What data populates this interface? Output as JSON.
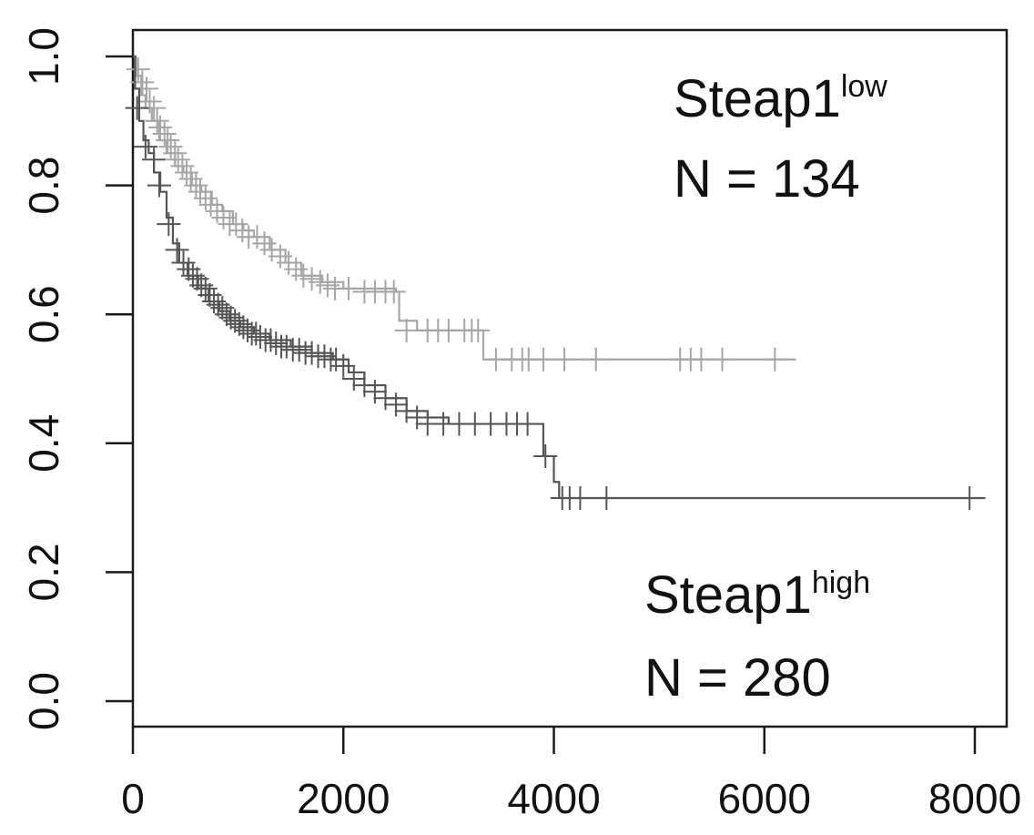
{
  "chart_data": {
    "type": "line",
    "title": "",
    "xlabel": "",
    "ylabel": "",
    "xlim": [
      0,
      8100
    ],
    "ylim": [
      0,
      1.0
    ],
    "x_ticks": [
      0,
      2000,
      4000,
      6000,
      8000
    ],
    "x_tick_labels": [
      "0",
      "2000",
      "4000",
      "6000",
      "8000"
    ],
    "y_ticks": [
      0.0,
      0.2,
      0.4,
      0.6,
      0.8,
      1.0
    ],
    "y_tick_labels": [
      "0.0",
      "0.2",
      "0.4",
      "0.6",
      "0.8",
      "1.0"
    ],
    "grid": false,
    "annotations": [
      {
        "base": "Steap1",
        "sup": "low",
        "line2": "N = 134",
        "color": "#111111"
      },
      {
        "base": "Steap1",
        "sup": "high",
        "line2": "N = 280",
        "color": "#111111"
      }
    ],
    "series": [
      {
        "color": "#a6a6a6",
        "step": [
          [
            0,
            1.0
          ],
          [
            30,
            0.97
          ],
          [
            80,
            0.94
          ],
          [
            120,
            0.92
          ],
          [
            180,
            0.9
          ],
          [
            250,
            0.87
          ],
          [
            320,
            0.85
          ],
          [
            400,
            0.83
          ],
          [
            480,
            0.82
          ],
          [
            560,
            0.8
          ],
          [
            650,
            0.79
          ],
          [
            750,
            0.77
          ],
          [
            850,
            0.76
          ],
          [
            950,
            0.74
          ],
          [
            1050,
            0.73
          ],
          [
            1150,
            0.72
          ],
          [
            1300,
            0.7
          ],
          [
            1450,
            0.68
          ],
          [
            1600,
            0.66
          ],
          [
            1800,
            0.65
          ],
          [
            2000,
            0.64
          ],
          [
            2500,
            0.635
          ],
          [
            2530,
            0.59
          ],
          [
            2700,
            0.575
          ],
          [
            3300,
            0.575
          ],
          [
            3330,
            0.53
          ],
          [
            6300,
            0.53
          ]
        ],
        "censor": [
          [
            50,
            0.98
          ],
          [
            90,
            0.96
          ],
          [
            130,
            0.95
          ],
          [
            160,
            0.93
          ],
          [
            200,
            0.92
          ],
          [
            230,
            0.9
          ],
          [
            260,
            0.89
          ],
          [
            300,
            0.88
          ],
          [
            330,
            0.87
          ],
          [
            360,
            0.86
          ],
          [
            400,
            0.85
          ],
          [
            430,
            0.84
          ],
          [
            470,
            0.83
          ],
          [
            510,
            0.82
          ],
          [
            550,
            0.81
          ],
          [
            600,
            0.8
          ],
          [
            640,
            0.79
          ],
          [
            690,
            0.78
          ],
          [
            740,
            0.77
          ],
          [
            800,
            0.76
          ],
          [
            860,
            0.75
          ],
          [
            920,
            0.74
          ],
          [
            980,
            0.74
          ],
          [
            1040,
            0.73
          ],
          [
            1100,
            0.72
          ],
          [
            1180,
            0.72
          ],
          [
            1250,
            0.71
          ],
          [
            1320,
            0.7
          ],
          [
            1400,
            0.69
          ],
          [
            1480,
            0.68
          ],
          [
            1550,
            0.67
          ],
          [
            1620,
            0.66
          ],
          [
            1700,
            0.655
          ],
          [
            1780,
            0.65
          ],
          [
            1850,
            0.645
          ],
          [
            1920,
            0.64
          ],
          [
            2050,
            0.64
          ],
          [
            2200,
            0.635
          ],
          [
            2300,
            0.635
          ],
          [
            2400,
            0.635
          ],
          [
            2480,
            0.635
          ],
          [
            2600,
            0.575
          ],
          [
            2800,
            0.575
          ],
          [
            2900,
            0.575
          ],
          [
            3000,
            0.575
          ],
          [
            3150,
            0.575
          ],
          [
            3220,
            0.575
          ],
          [
            3280,
            0.575
          ],
          [
            3450,
            0.53
          ],
          [
            3600,
            0.53
          ],
          [
            3700,
            0.53
          ],
          [
            3760,
            0.53
          ],
          [
            3900,
            0.53
          ],
          [
            4100,
            0.53
          ],
          [
            4400,
            0.53
          ],
          [
            5200,
            0.53
          ],
          [
            5300,
            0.53
          ],
          [
            5400,
            0.53
          ],
          [
            5600,
            0.53
          ],
          [
            6100,
            0.53
          ]
        ]
      },
      {
        "color": "#555555",
        "step": [
          [
            0,
            1.0
          ],
          [
            20,
            0.95
          ],
          [
            60,
            0.9
          ],
          [
            100,
            0.87
          ],
          [
            150,
            0.85
          ],
          [
            200,
            0.82
          ],
          [
            260,
            0.79
          ],
          [
            320,
            0.75
          ],
          [
            380,
            0.71
          ],
          [
            440,
            0.68
          ],
          [
            520,
            0.66
          ],
          [
            620,
            0.64
          ],
          [
            720,
            0.62
          ],
          [
            820,
            0.605
          ],
          [
            920,
            0.59
          ],
          [
            1020,
            0.58
          ],
          [
            1150,
            0.57
          ],
          [
            1300,
            0.56
          ],
          [
            1500,
            0.55
          ],
          [
            1700,
            0.54
          ],
          [
            1900,
            0.53
          ],
          [
            2050,
            0.51
          ],
          [
            2200,
            0.49
          ],
          [
            2400,
            0.47
          ],
          [
            2600,
            0.45
          ],
          [
            2800,
            0.44
          ],
          [
            3000,
            0.43
          ],
          [
            3850,
            0.43
          ],
          [
            3900,
            0.38
          ],
          [
            4000,
            0.34
          ],
          [
            4050,
            0.315
          ],
          [
            8100,
            0.315
          ]
        ],
        "censor": [
          [
            40,
            0.92
          ],
          [
            120,
            0.86
          ],
          [
            200,
            0.84
          ],
          [
            250,
            0.8
          ],
          [
            340,
            0.74
          ],
          [
            420,
            0.7
          ],
          [
            480,
            0.68
          ],
          [
            530,
            0.67
          ],
          [
            570,
            0.66
          ],
          [
            610,
            0.655
          ],
          [
            650,
            0.645
          ],
          [
            690,
            0.64
          ],
          [
            730,
            0.63
          ],
          [
            770,
            0.62
          ],
          [
            810,
            0.615
          ],
          [
            850,
            0.61
          ],
          [
            890,
            0.6
          ],
          [
            930,
            0.595
          ],
          [
            970,
            0.59
          ],
          [
            1010,
            0.585
          ],
          [
            1050,
            0.58
          ],
          [
            1090,
            0.575
          ],
          [
            1130,
            0.57
          ],
          [
            1170,
            0.57
          ],
          [
            1210,
            0.565
          ],
          [
            1260,
            0.56
          ],
          [
            1310,
            0.56
          ],
          [
            1360,
            0.555
          ],
          [
            1410,
            0.55
          ],
          [
            1460,
            0.55
          ],
          [
            1520,
            0.545
          ],
          [
            1580,
            0.545
          ],
          [
            1640,
            0.54
          ],
          [
            1700,
            0.54
          ],
          [
            1760,
            0.535
          ],
          [
            1820,
            0.535
          ],
          [
            1880,
            0.53
          ],
          [
            1930,
            0.53
          ],
          [
            2000,
            0.52
          ],
          [
            2100,
            0.5
          ],
          [
            2200,
            0.49
          ],
          [
            2300,
            0.48
          ],
          [
            2400,
            0.47
          ],
          [
            2500,
            0.46
          ],
          [
            2600,
            0.45
          ],
          [
            2700,
            0.44
          ],
          [
            2800,
            0.43
          ],
          [
            2950,
            0.43
          ],
          [
            3100,
            0.43
          ],
          [
            3250,
            0.43
          ],
          [
            3400,
            0.43
          ],
          [
            3550,
            0.43
          ],
          [
            3650,
            0.43
          ],
          [
            3750,
            0.43
          ],
          [
            3920,
            0.38
          ],
          [
            4080,
            0.315
          ],
          [
            4150,
            0.315
          ],
          [
            4250,
            0.315
          ],
          [
            4500,
            0.315
          ],
          [
            7950,
            0.315
          ]
        ]
      }
    ]
  }
}
